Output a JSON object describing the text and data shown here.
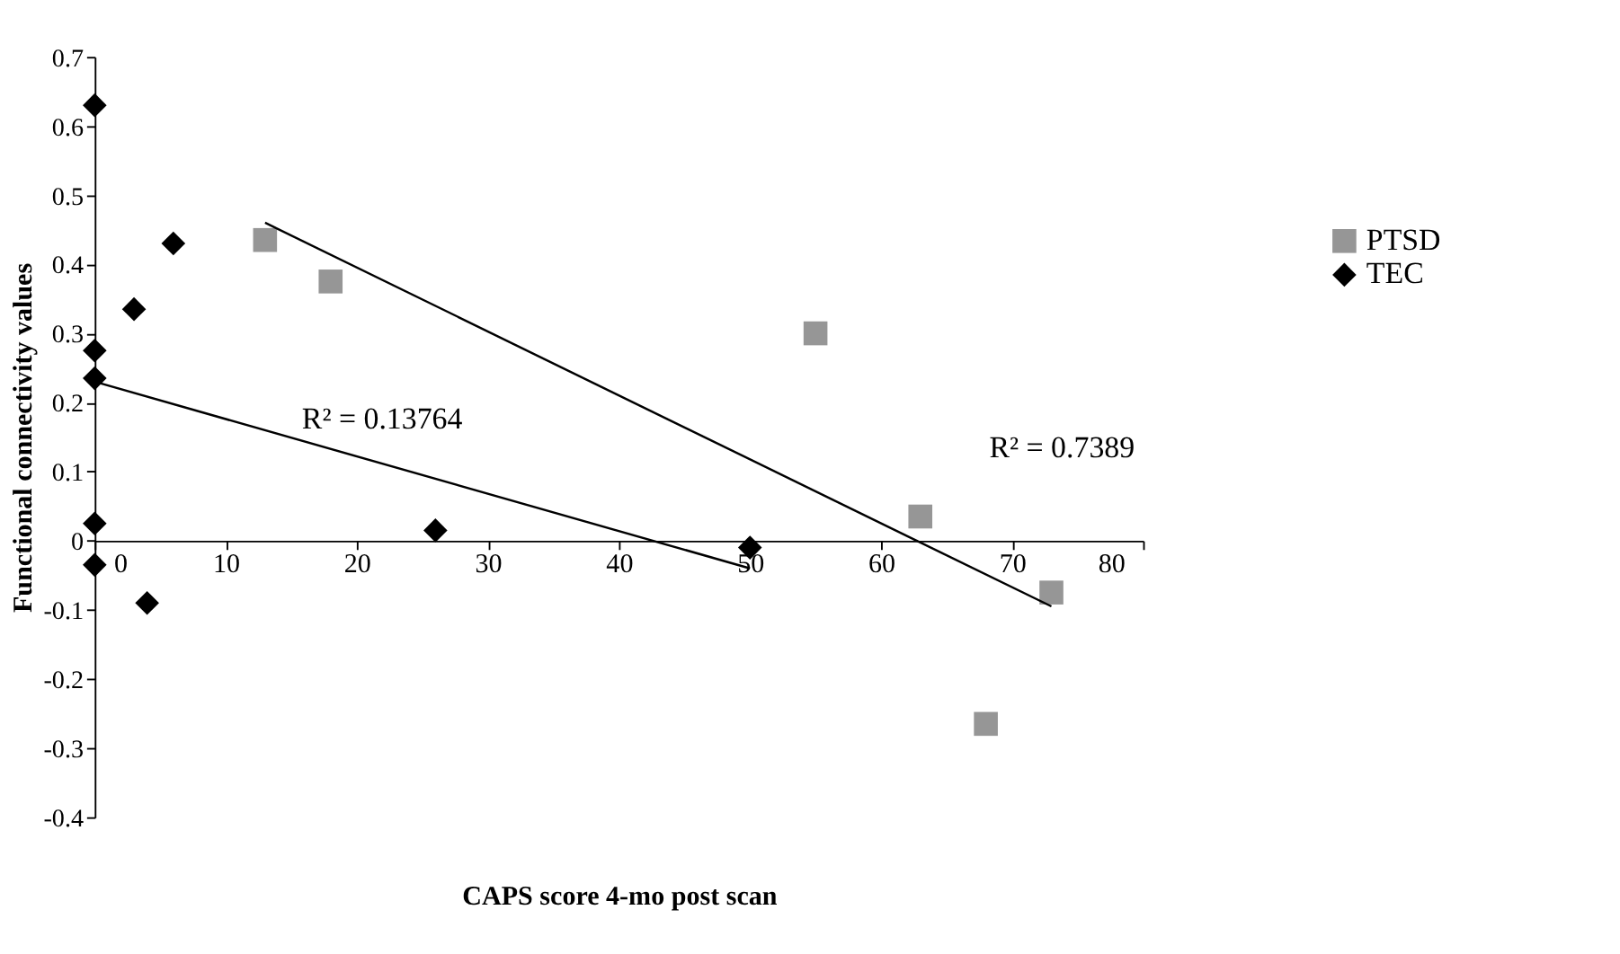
{
  "chart_data": {
    "type": "scatter",
    "xlabel": "CAPS score 4-mo post scan",
    "ylabel": "Functional connectivity values",
    "xlim": [
      0,
      80
    ],
    "xticks": [
      0,
      10,
      20,
      30,
      40,
      50,
      60,
      70,
      80
    ],
    "ylim": [
      -0.4,
      0.7
    ],
    "yticks": [
      -0.4,
      -0.3,
      -0.2,
      -0.1,
      0,
      0.1,
      0.2,
      0.3,
      0.4,
      0.5,
      0.6,
      0.7
    ],
    "grid": false,
    "legend": "right",
    "series": [
      {
        "name": "PTSD",
        "color": "#969696",
        "marker": "square",
        "x": [
          13,
          18,
          55,
          63,
          68,
          73
        ],
        "values": [
          0.435,
          0.375,
          0.3,
          0.035,
          -0.265,
          -0.075
        ]
      },
      {
        "name": "TEC",
        "color": "#000000",
        "marker": "diamond",
        "x": [
          0,
          0,
          0,
          0,
          0,
          3,
          4,
          6,
          26,
          50
        ],
        "values": [
          0.63,
          0.275,
          0.235,
          0.025,
          -0.035,
          0.335,
          -0.09,
          0.43,
          0.015,
          -0.01
        ]
      },
      {
        "type": "line",
        "color": "#000000",
        "x": [
          13,
          73
        ],
        "values": [
          0.46,
          -0.095
        ]
      },
      {
        "type": "line",
        "color": "#000000",
        "x": [
          0,
          50
        ],
        "values": [
          0.23,
          -0.04
        ]
      }
    ],
    "annotations": [
      "R² = 0.13764",
      "R² = 0.7389"
    ]
  }
}
